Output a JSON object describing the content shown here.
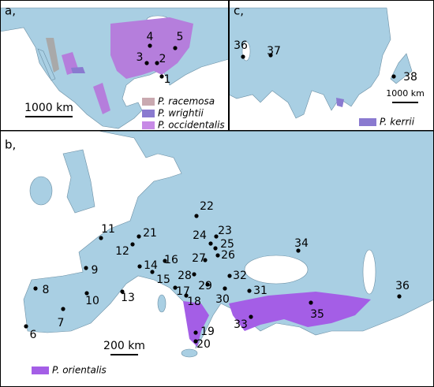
{
  "panels": [
    {
      "label": "a,",
      "scale_bar": "1000 km",
      "legend": [
        "P. racemosa",
        "P. wrightii",
        "P. occidentalis"
      ],
      "sites": [
        "1",
        "2",
        "3",
        "4",
        "5"
      ]
    },
    {
      "label": "b,",
      "scale_bar": "200 km",
      "legend": [
        "P. orientalis"
      ],
      "sites": [
        "6",
        "7",
        "8",
        "9",
        "10",
        "11",
        "12",
        "13",
        "14",
        "15",
        "16",
        "17",
        "18",
        "19",
        "20",
        "21",
        "22",
        "23",
        "24",
        "25",
        "26",
        "27",
        "28",
        "29",
        "30",
        "31",
        "32",
        "33",
        "34",
        "35",
        "36"
      ]
    },
    {
      "label": "c,",
      "scale_bar": "1000 km",
      "legend": [
        "P. kerrii"
      ],
      "sites": [
        "36",
        "37",
        "38"
      ]
    }
  ]
}
